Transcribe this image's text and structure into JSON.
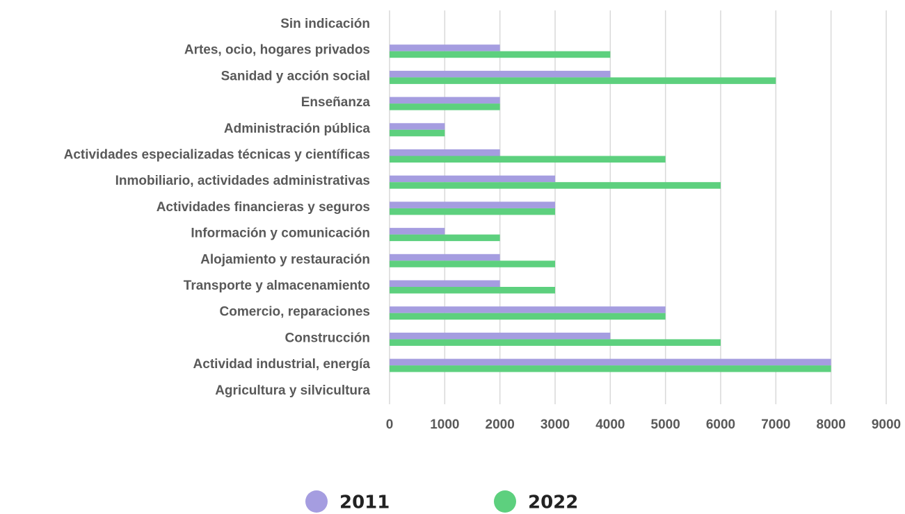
{
  "chart_data": {
    "type": "bar",
    "orientation": "horizontal",
    "categories": [
      "Sin indicación",
      "Artes, ocio, hogares privados",
      "Sanidad y acción social",
      "Enseñanza",
      "Administración pública",
      "Actividades especializadas técnicas y científicas",
      "Inmobiliario, actividades administrativas",
      "Actividades financieras y seguros",
      "Información y comunicación",
      "Alojamiento y restauración",
      "Transporte y almacenamiento",
      "Comercio, reparaciones",
      "Construcción",
      "Actividad industrial, energía",
      "Agricultura y silvicultura"
    ],
    "series": [
      {
        "name": "2011",
        "color": "#a59de0",
        "values": [
          0,
          2000,
          4000,
          2000,
          1000,
          2000,
          3000,
          3000,
          1000,
          2000,
          2000,
          5000,
          4000,
          8000,
          0
        ]
      },
      {
        "name": "2022",
        "color": "#5dd07e",
        "values": [
          0,
          4000,
          7000,
          2000,
          1000,
          5000,
          6000,
          3000,
          2000,
          3000,
          3000,
          5000,
          6000,
          8000,
          0
        ]
      }
    ],
    "xlim": [
      0,
      9000
    ],
    "xticks": [
      0,
      1000,
      2000,
      3000,
      4000,
      5000,
      6000,
      7000,
      8000,
      9000
    ],
    "grid": true,
    "legend": "bottom"
  }
}
